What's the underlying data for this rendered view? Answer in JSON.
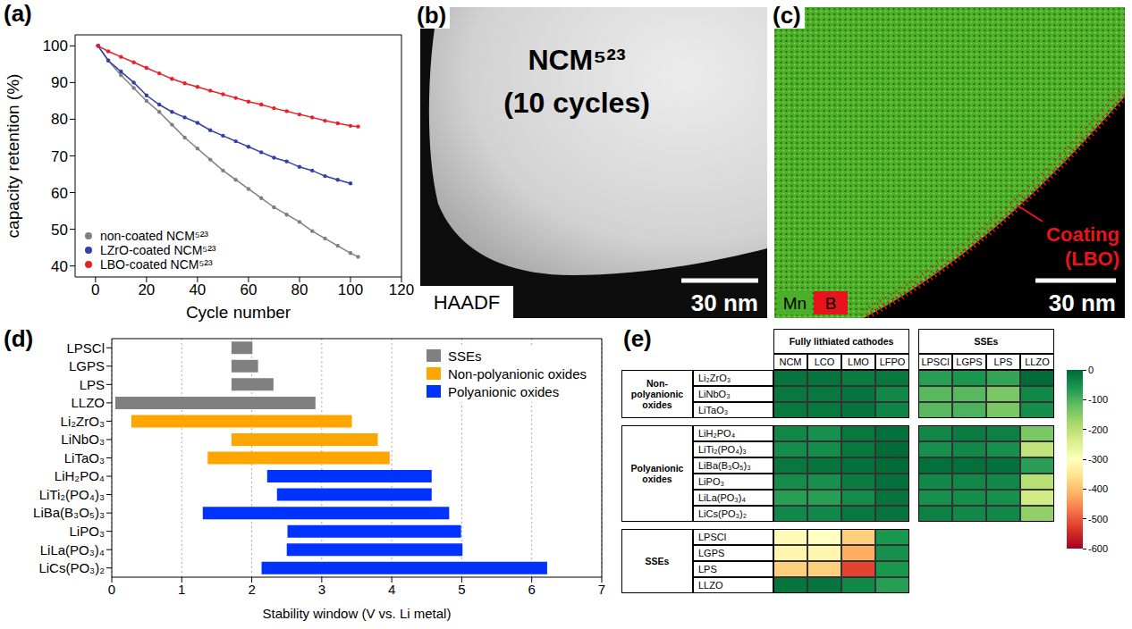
{
  "chart_data": [
    {
      "panel": "(a)",
      "type": "line",
      "xlabel": "Cycle number",
      "ylabel": "capacity retention (%)",
      "x": [
        1,
        5,
        10,
        15,
        20,
        25,
        30,
        35,
        40,
        45,
        50,
        55,
        60,
        65,
        70,
        75,
        80,
        85,
        90,
        95,
        100,
        103
      ],
      "xlim": [
        -8,
        120
      ],
      "xticks": [
        0,
        20,
        40,
        60,
        80,
        100,
        120
      ],
      "ylim": [
        37,
        103
      ],
      "yticks": [
        40,
        50,
        60,
        70,
        80,
        90,
        100
      ],
      "legend": "lower left",
      "marker": "circle",
      "series": [
        {
          "name": "non-coated NCM⁵²³",
          "color": "#808080",
          "values": [
            100,
            96,
            92,
            88.5,
            85,
            82,
            78.5,
            75,
            72,
            69,
            66,
            63.5,
            61,
            58.5,
            56,
            54,
            52,
            49.5,
            47.5,
            45.5,
            43.5,
            42.5
          ]
        },
        {
          "name": "LZrO-coated NCM⁵²³",
          "color": "#3340a8",
          "values": [
            100,
            96,
            93,
            90,
            86.5,
            84,
            82,
            80.5,
            79,
            77,
            75.5,
            74,
            72.5,
            71,
            69.5,
            68.5,
            67,
            66,
            64.5,
            63.5,
            62.5,
            null
          ]
        },
        {
          "name": "LBO-coated NCM⁵²³",
          "color": "#e8202a",
          "values": [
            100,
            98.5,
            97,
            95.5,
            94,
            92.5,
            91,
            89.8,
            88.8,
            87.8,
            86.8,
            85.8,
            84.8,
            84,
            83,
            82.2,
            81.3,
            80.5,
            79.6,
            78.9,
            78.2,
            78
          ]
        }
      ]
    },
    {
      "panel": "(d)",
      "type": "bar",
      "orientation": "horizontal",
      "xlabel": "Stability window (V vs. Li metal)",
      "xlim": [
        0,
        7
      ],
      "xticks": [
        0,
        1,
        2,
        3,
        4,
        5,
        6,
        7
      ],
      "grid": true,
      "legend": "upper right",
      "series": [
        {
          "name": "SSEs",
          "color": "#808080",
          "categories": [
            "LPSCl",
            "LGPS",
            "LPS",
            "LLZO"
          ],
          "values": [
            [
              1.71,
              2.01
            ],
            [
              1.71,
              2.09
            ],
            [
              1.71,
              2.31
            ],
            [
              0.05,
              2.91
            ]
          ]
        },
        {
          "name": "Non-polyanionic oxides",
          "color": "#ffa500",
          "categories": [
            "Li₂ZrO₃",
            "LiNbO₃",
            "LiTaO₃"
          ],
          "values": [
            [
              0.28,
              3.43
            ],
            [
              1.71,
              3.8
            ],
            [
              1.37,
              3.97
            ]
          ]
        },
        {
          "name": "Polyanionic oxides",
          "color": "#0033ff",
          "categories": [
            "LiH₂PO₄",
            "LiTi₂(PO₄)₃",
            "LiBa(B₃O₅)₃",
            "LiPO₃",
            "LiLa(PO₃)₄",
            "LiCs(PO₃)₂"
          ],
          "values": [
            [
              2.22,
              4.57
            ],
            [
              2.36,
              4.57
            ],
            [
              1.3,
              4.82
            ],
            [
              2.51,
              4.99
            ],
            [
              2.5,
              5.01
            ],
            [
              2.14,
              6.22
            ]
          ]
        }
      ]
    },
    {
      "panel": "(e)",
      "type": "heatmap",
      "column_groups": [
        {
          "label": "Fully lithiated cathodes",
          "columns": [
            "NCM",
            "LCO",
            "LMO",
            "LFPO"
          ]
        },
        {
          "label": "SSEs",
          "columns": [
            "LPSCl",
            "LGPS",
            "LPS",
            "LLZO"
          ]
        }
      ],
      "row_groups": [
        {
          "label": "Non-polyanionic oxides",
          "rows": [
            "Li₂ZrO₃",
            "LiNbO₃",
            "LiTaO₃"
          ],
          "cells": [
            [
              -15,
              -15,
              -25,
              -20,
              -70,
              -60,
              -80,
              -5
            ],
            [
              -20,
              -20,
              -15,
              -40,
              -110,
              -110,
              -140,
              -40
            ],
            [
              -20,
              -20,
              -15,
              -35,
              -110,
              -100,
              -140,
              -45
            ]
          ]
        },
        {
          "label": "Polyanionic oxides",
          "rows": [
            "LiH₂PO₄",
            "LiTi₂(PO₄)₃",
            "LiBa(B₃O₅)₃",
            "LiPO₃",
            "LiLa(PO₃)₄",
            "LiCs(PO₃)₂"
          ],
          "cells": [
            [
              -40,
              -50,
              -20,
              -10,
              -40,
              -25,
              -30,
              -140
            ],
            [
              -45,
              -45,
              -20,
              -5,
              -50,
              -40,
              -50,
              -210
            ],
            [
              -20,
              -15,
              -10,
              -5,
              -10,
              -10,
              -10,
              -70
            ],
            [
              -45,
              -50,
              -25,
              -10,
              -40,
              -40,
              -40,
              -200
            ],
            [
              -70,
              -70,
              -45,
              -15,
              -50,
              -45,
              -50,
              -230
            ],
            [
              -40,
              -40,
              -20,
              -15,
              -30,
              -40,
              -40,
              -160
            ]
          ]
        },
        {
          "label": "SSEs",
          "rows": [
            "LPSCl",
            "LGPS",
            "LPS",
            "LLZO"
          ],
          "cells": [
            [
              -310,
              -300,
              -380,
              -60
            ],
            [
              -320,
              -320,
              -420,
              -50
            ],
            [
              -380,
              -380,
              -520,
              -60
            ],
            [
              -15,
              -15,
              -40,
              -70
            ]
          ]
        }
      ],
      "colorbar": {
        "range": [
          -600,
          0
        ],
        "ticks": [
          0,
          -100,
          -200,
          -300,
          -400,
          -500,
          -600
        ]
      }
    }
  ],
  "images": [
    {
      "panel": "(b)",
      "title": [
        "NCM⁵²³",
        "(10 cycles)"
      ],
      "label": "HAADF",
      "scale_bar": "30 nm"
    },
    {
      "panel": "(c)",
      "channels": [
        {
          "name": "Mn",
          "color": "#4caf2a"
        },
        {
          "name": "B",
          "color": "#e8141c"
        }
      ],
      "annotation": [
        "Coating",
        "(LBO)"
      ],
      "scale_bar": "30 nm"
    }
  ]
}
